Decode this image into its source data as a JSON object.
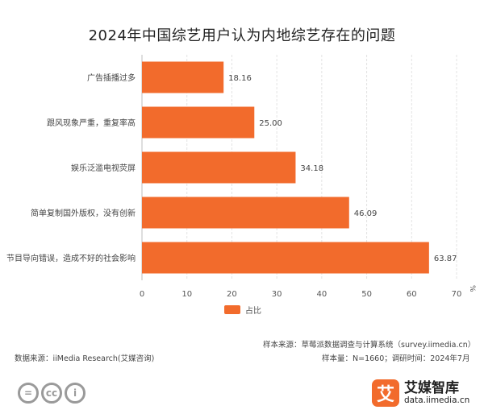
{
  "chart_data": {
    "type": "bar",
    "orientation": "horizontal",
    "title": "2024年中国综艺用户认为内地综艺存在的问题",
    "categories": [
      "广告插播过多",
      "跟风现象严重，重复率高",
      "娱乐泛滥电视荧屏",
      "简单复制国外版权，没有创新",
      "节目导向错误，造成不好的社会影响"
    ],
    "series": [
      {
        "name": "占比",
        "values": [
          18.16,
          25.0,
          34.18,
          46.09,
          63.87
        ]
      }
    ],
    "value_labels": [
      "18.16",
      "25.00",
      "34.18",
      "46.09",
      "63.87"
    ],
    "xlim": [
      0,
      70
    ],
    "xticks": [
      "0",
      "10",
      "20",
      "30",
      "40",
      "50",
      "60",
      "70"
    ],
    "x_unit": "%",
    "grid": true,
    "legend_position": "bottom",
    "bar_color": "#f26b2c"
  },
  "footer": {
    "sample_source": "样本来源：草莓派数据调查与计算系统（survey.iimedia.cn）",
    "data_source": "数据来源：iiMedia Research(艾媒咨询)",
    "sample_info": "样本量：N=1660；调研时间：2024年7月"
  },
  "brand": {
    "logo_char": "艾",
    "name": "艾媒智库",
    "url": "data.iimedia.cn"
  },
  "license_icons": {
    "icon1": "=",
    "icon2": "cc",
    "icon3": "i"
  }
}
